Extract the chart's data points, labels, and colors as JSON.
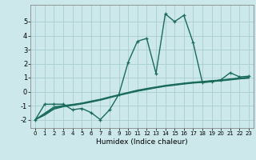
{
  "xlabel": "Humidex (Indice chaleur)",
  "xlim": [
    -0.5,
    23.5
  ],
  "ylim": [
    -2.6,
    6.2
  ],
  "xticks": [
    0,
    1,
    2,
    3,
    4,
    5,
    6,
    7,
    8,
    9,
    10,
    11,
    12,
    13,
    14,
    15,
    16,
    17,
    18,
    19,
    20,
    21,
    22,
    23
  ],
  "yticks": [
    -2,
    -1,
    0,
    1,
    2,
    3,
    4,
    5
  ],
  "background_color": "#cce8eb",
  "grid_color": "#a8cdd1",
  "line_color": "#1a6b5a",
  "series1": [
    -2.0,
    -0.9,
    -0.9,
    -0.9,
    -1.3,
    -1.2,
    -1.5,
    -2.0,
    -1.3,
    -0.2,
    2.1,
    3.6,
    3.8,
    1.3,
    5.55,
    5.0,
    5.45,
    3.5,
    0.65,
    0.7,
    0.85,
    1.35,
    1.05,
    1.1
  ],
  "series2": [
    -2.0,
    -1.55,
    -1.1,
    -1.0,
    -0.92,
    -0.82,
    -0.68,
    -0.55,
    -0.38,
    -0.22,
    -0.06,
    0.1,
    0.22,
    0.33,
    0.44,
    0.52,
    0.6,
    0.67,
    0.72,
    0.78,
    0.83,
    0.9,
    0.97,
    1.02
  ],
  "series3": [
    -2.0,
    -1.62,
    -1.18,
    -1.04,
    -0.95,
    -0.85,
    -0.72,
    -0.58,
    -0.41,
    -0.25,
    -0.09,
    0.06,
    0.18,
    0.3,
    0.41,
    0.49,
    0.57,
    0.64,
    0.69,
    0.75,
    0.8,
    0.87,
    0.94,
    0.99
  ],
  "series4": [
    -2.0,
    -1.68,
    -1.25,
    -1.08,
    -0.98,
    -0.88,
    -0.75,
    -0.61,
    -0.44,
    -0.27,
    -0.12,
    0.03,
    0.15,
    0.27,
    0.38,
    0.46,
    0.54,
    0.61,
    0.66,
    0.72,
    0.77,
    0.84,
    0.91,
    0.96
  ]
}
